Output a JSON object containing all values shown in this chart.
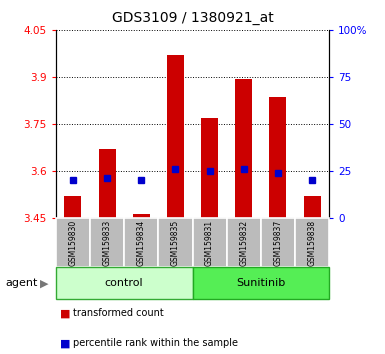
{
  "title": "GDS3109 / 1380921_at",
  "samples": [
    "GSM159830",
    "GSM159833",
    "GSM159834",
    "GSM159835",
    "GSM159831",
    "GSM159832",
    "GSM159837",
    "GSM159838"
  ],
  "red_values": [
    3.52,
    3.67,
    3.462,
    3.97,
    3.77,
    3.895,
    3.835,
    3.52
  ],
  "blue_values": [
    3.572,
    3.578,
    3.57,
    3.605,
    3.598,
    3.605,
    3.592,
    3.57
  ],
  "baseline": 3.45,
  "ylim_left": [
    3.45,
    4.05
  ],
  "ylim_right": [
    0,
    100
  ],
  "yticks_left": [
    3.45,
    3.6,
    3.75,
    3.9,
    4.05
  ],
  "yticks_right": [
    0,
    25,
    50,
    75,
    100
  ],
  "ytick_labels_left": [
    "3.45",
    "3.6",
    "3.75",
    "3.9",
    "4.05"
  ],
  "ytick_labels_right": [
    "0",
    "25",
    "50",
    "75",
    "100%"
  ],
  "group_labels": [
    "control",
    "Sunitinib"
  ],
  "group_colors_light": "#ccffcc",
  "group_colors_bright": "#55ee55",
  "bar_color": "#cc0000",
  "dot_color": "#0000cc",
  "plot_bg": "#ffffff",
  "sample_box_color": "#bbbbbb",
  "agent_label": "agent",
  "legend_items": [
    "transformed count",
    "percentile rank within the sample"
  ],
  "legend_colors": [
    "#cc0000",
    "#0000cc"
  ],
  "title_fontsize": 10,
  "tick_fontsize": 7.5,
  "label_fontsize": 7.5,
  "sample_fontsize": 5.5,
  "group_fontsize": 8
}
